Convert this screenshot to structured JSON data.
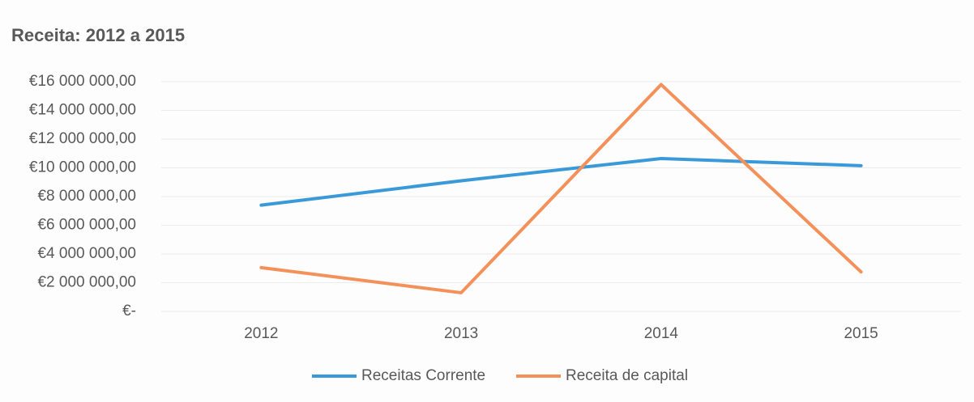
{
  "chart_data": {
    "type": "line",
    "title": "Receita: 2012 a 2015",
    "categories": [
      "2012",
      "2013",
      "2014",
      "2015"
    ],
    "series": [
      {
        "name": "Receitas Corrente",
        "color": "#3a9ad9",
        "values": [
          7400000,
          9100000,
          10650000,
          10150000
        ]
      },
      {
        "name": "Receita de capital",
        "color": "#f4915a",
        "values": [
          3050000,
          1300000,
          15800000,
          2750000
        ]
      }
    ],
    "ylim": [
      0,
      16000000
    ],
    "yticks": [
      {
        "value": 0,
        "label": "€-"
      },
      {
        "value": 2000000,
        "label": "€2 000 000,00"
      },
      {
        "value": 4000000,
        "label": "€4 000 000,00"
      },
      {
        "value": 6000000,
        "label": "€6 000 000,00"
      },
      {
        "value": 8000000,
        "label": "€8 000 000,00"
      },
      {
        "value": 10000000,
        "label": "€10 000 000,00"
      },
      {
        "value": 12000000,
        "label": "€12 000 000,00"
      },
      {
        "value": 14000000,
        "label": "€14 000 000,00"
      },
      {
        "value": 16000000,
        "label": "€16 000 000,00"
      }
    ],
    "grid": true,
    "legend": "bottom"
  }
}
